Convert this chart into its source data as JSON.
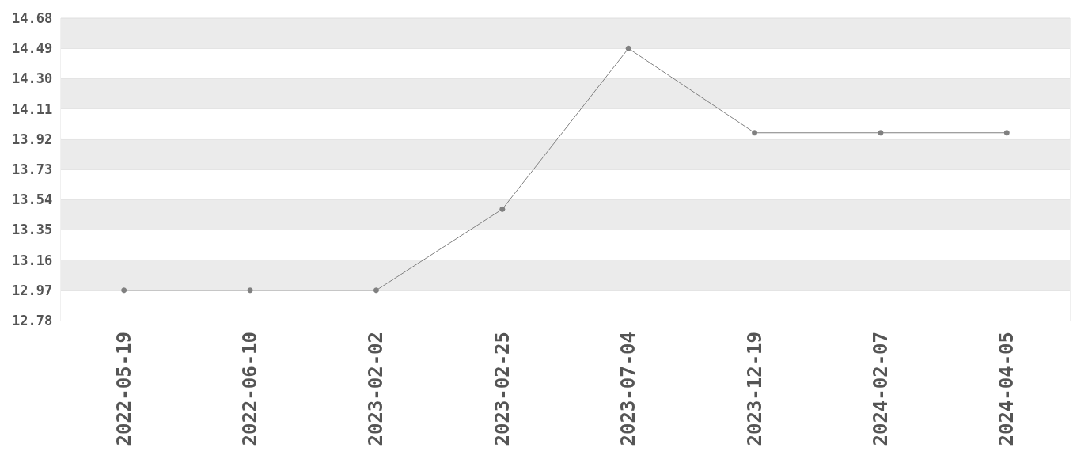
{
  "chart_data": {
    "type": "line",
    "categories": [
      "2022-05-19",
      "2022-06-10",
      "2023-02-02",
      "2023-02-25",
      "2023-07-04",
      "2023-12-19",
      "2024-02-07",
      "2024-04-05"
    ],
    "series": [
      {
        "color": "#808080",
        "values": [
          12.97,
          12.97,
          12.97,
          13.48,
          14.49,
          13.96,
          13.96,
          13.96
        ]
      }
    ],
    "ylim": [
      12.78,
      14.68
    ],
    "yticks": [
      12.78,
      12.97,
      13.16,
      13.35,
      13.54,
      13.73,
      13.92,
      14.11,
      {
        "value": 14.3,
        "label": "14.30"
      },
      14.49,
      14.68
    ],
    "grid": "y",
    "marker": "circle",
    "line_style": "solid"
  }
}
